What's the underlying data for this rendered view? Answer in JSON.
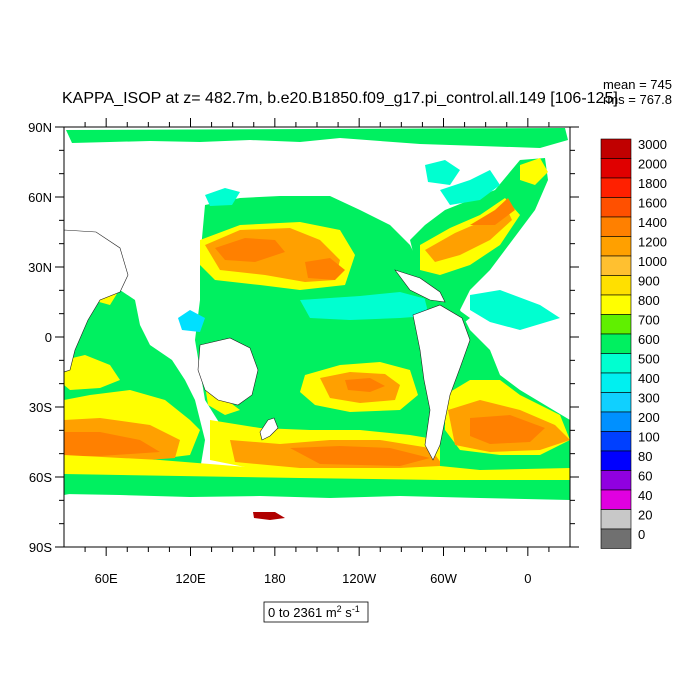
{
  "chart_data": {
    "type": "heatmap",
    "title": "KAPPA_ISOP at z= 482.7m, b.e20.B1850.f09_g17.pi_control.all.149 [106-125]",
    "stats": {
      "mean": "mean = 745",
      "rms": "rms = 767.8"
    },
    "x_ticks": [
      "60E",
      "120E",
      "180",
      "120W",
      "60W",
      "0"
    ],
    "x_tick_lon": [
      60,
      120,
      180,
      240,
      300,
      360
    ],
    "xlim": [
      30,
      390
    ],
    "y_ticks": [
      "90N",
      "60N",
      "30N",
      "0",
      "30S",
      "60S",
      "90S"
    ],
    "y_tick_lat": [
      90,
      60,
      30,
      0,
      -30,
      -60,
      -90
    ],
    "ylim": [
      -90,
      90
    ],
    "colorbar": {
      "levels": [
        "3000",
        "2000",
        "1800",
        "1600",
        "1400",
        "1200",
        "1000",
        "900",
        "800",
        "700",
        "600",
        "500",
        "400",
        "300",
        "200",
        "100",
        "80",
        "60",
        "40",
        "20",
        "0"
      ],
      "colors": [
        "#c00000",
        "#e00000",
        "#ff2000",
        "#ff5000",
        "#ff8000",
        "#ffa000",
        "#ffc030",
        "#ffe000",
        "#ffff00",
        "#60f000",
        "#00f060",
        "#00ffd0",
        "#00f0f0",
        "#10d0ff",
        "#0090ff",
        "#0040ff",
        "#0000ff",
        "#9000e0",
        "#e000e0",
        "#c8c8c8",
        "#707070"
      ]
    },
    "range_text": "0 to 2361",
    "unit": {
      "base_m": " m",
      "exp_m": "2",
      "base_s": " s",
      "exp_s": "-1"
    }
  }
}
